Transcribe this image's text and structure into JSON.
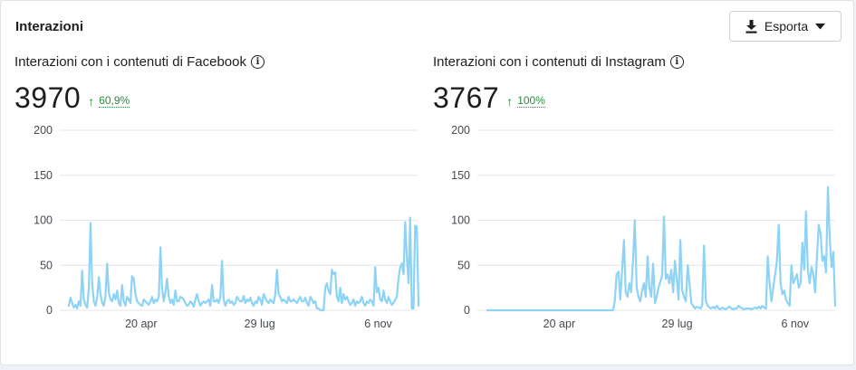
{
  "header": {
    "title": "Interazioni",
    "export_label": "Esporta",
    "export_icon": "download-icon",
    "export_caret_icon": "caret-down-icon"
  },
  "colors": {
    "line": "#8dd3f6",
    "grid": "#e4e6eb",
    "trend": "#2a8a3e"
  },
  "panels": [
    {
      "title": "Interazioni con i contenuti di Facebook",
      "total": "3970",
      "trend": "60,9%"
    },
    {
      "title": "Interazioni con i contenuti di Instagram",
      "total": "3767",
      "trend": "100%"
    }
  ],
  "chart_data": [
    {
      "type": "line",
      "title": "Interazioni con i contenuti di Facebook",
      "ylim": [
        0,
        200
      ],
      "y_ticks": [
        "0",
        "50",
        "100",
        "150",
        "200"
      ],
      "x_ticks": [
        {
          "label": "20 apr",
          "day": 66
        },
        {
          "label": "29 lug",
          "day": 166
        },
        {
          "label": "6 nov",
          "day": 266
        }
      ],
      "x_range_days": [
        5,
        300
      ],
      "grid": true,
      "series": [
        {
          "values": [
            5,
            14,
            8,
            3,
            6,
            2,
            10,
            5,
            44,
            12,
            6,
            3,
            25,
            97,
            30,
            10,
            5,
            14,
            37,
            18,
            8,
            5,
            15,
            52,
            20,
            12,
            10,
            18,
            12,
            22,
            8,
            5,
            28,
            10,
            5,
            15,
            12,
            8,
            38,
            35,
            18,
            10,
            8,
            6,
            5,
            12,
            10,
            8,
            6,
            10,
            15,
            8,
            12,
            10,
            15,
            70,
            25,
            10,
            20,
            35,
            15,
            8,
            12,
            6,
            22,
            10,
            10,
            15,
            14,
            12,
            8,
            5,
            6,
            10,
            8,
            4,
            12,
            18,
            10,
            5,
            8,
            10,
            8,
            10,
            12,
            5,
            28,
            10,
            10,
            12,
            8,
            15,
            55,
            12,
            5,
            10,
            12,
            8,
            10,
            6,
            8,
            15,
            12,
            10,
            10,
            16,
            8,
            12,
            10,
            14,
            8,
            5,
            10,
            8,
            15,
            12,
            6,
            18,
            14,
            10,
            8,
            12,
            10,
            8,
            18,
            45,
            18,
            15,
            10,
            12,
            10,
            8,
            15,
            10,
            10,
            12,
            10,
            8,
            12,
            15,
            10,
            10,
            14,
            8,
            5,
            15,
            12,
            8,
            10,
            2,
            2,
            0,
            0,
            0,
            25,
            30,
            22,
            18,
            45,
            40,
            42,
            15,
            10,
            25,
            8,
            18,
            12,
            15,
            10,
            6,
            8,
            12,
            5,
            10,
            8,
            10,
            15,
            8,
            5,
            10,
            8,
            12,
            10,
            5,
            48,
            20,
            25,
            12,
            10,
            22,
            12,
            8,
            15,
            10,
            6,
            8,
            12,
            15,
            35,
            48,
            52,
            40,
            98,
            60,
            30,
            103,
            2,
            2,
            94,
            93,
            5
          ]
        }
      ]
    },
    {
      "type": "line",
      "title": "Interazioni con i contenuti di Instagram",
      "ylim": [
        0,
        200
      ],
      "y_ticks": [
        "0",
        "50",
        "100",
        "150",
        "200"
      ],
      "x_ticks": [
        {
          "label": "20 apr",
          "day": 66
        },
        {
          "label": "29 lug",
          "day": 166
        },
        {
          "label": "6 nov",
          "day": 266
        }
      ],
      "x_range_days": [
        5,
        300
      ],
      "grid": true,
      "series": [
        {
          "values": [
            0,
            0,
            0,
            0,
            0,
            0,
            0,
            0,
            0,
            0,
            0,
            0,
            0,
            0,
            0,
            0,
            0,
            0,
            0,
            0,
            0,
            0,
            0,
            0,
            0,
            0,
            0,
            0,
            0,
            0,
            0,
            0,
            0,
            0,
            0,
            0,
            0,
            0,
            0,
            0,
            0,
            0,
            0,
            0,
            0,
            0,
            0,
            0,
            0,
            0,
            0,
            0,
            0,
            0,
            0,
            0,
            0,
            0,
            0,
            0,
            0,
            0,
            0,
            0,
            0,
            0,
            0,
            0,
            0,
            0,
            10,
            40,
            43,
            12,
            45,
            78,
            20,
            15,
            30,
            20,
            55,
            100,
            25,
            15,
            10,
            22,
            30,
            15,
            60,
            25,
            15,
            52,
            8,
            15,
            25,
            32,
            38,
            104,
            35,
            40,
            30,
            45,
            20,
            55,
            35,
            12,
            78,
            22,
            15,
            10,
            50,
            30,
            8,
            5,
            2,
            4,
            3,
            2,
            5,
            72,
            10,
            5,
            3,
            2,
            4,
            2,
            5,
            2,
            1,
            3,
            2,
            1,
            3,
            4,
            2,
            1,
            2,
            2,
            5,
            3,
            2,
            1,
            2,
            2,
            2,
            1,
            2,
            3,
            2,
            4,
            2,
            5,
            3,
            2,
            60,
            30,
            10,
            25,
            40,
            55,
            95,
            30,
            18,
            22,
            12,
            8,
            5,
            50,
            30,
            35,
            40,
            25,
            30,
            75,
            45,
            110,
            45,
            30,
            48,
            40,
            20,
            60,
            95,
            85,
            55,
            60,
            42,
            137,
            80,
            48,
            65,
            5
          ]
        }
      ]
    }
  ]
}
